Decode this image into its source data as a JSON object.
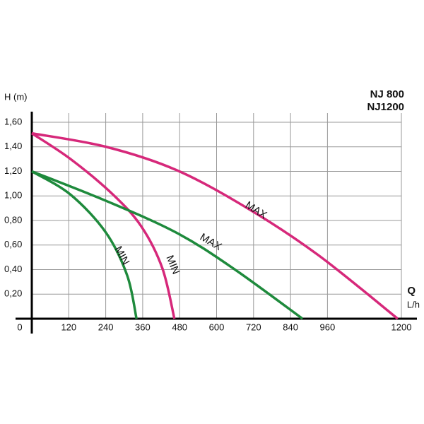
{
  "chart_data": {
    "type": "line",
    "y_label": "H (m)",
    "x_label": "Q",
    "x_unit": "L/h",
    "legend": [
      {
        "label": "NJ 800",
        "color": "#1e8a3c"
      },
      {
        "label": "NJ1200",
        "color": "#d6287a"
      }
    ],
    "xlim": [
      0,
      1200
    ],
    "ylim": [
      0,
      1.6
    ],
    "xticks": [
      0,
      120,
      240,
      360,
      480,
      600,
      720,
      840,
      960,
      1200
    ],
    "yticks": [
      {
        "value": 0.2,
        "label": "0,20"
      },
      {
        "value": 0.4,
        "label": "0,40"
      },
      {
        "value": 0.6,
        "label": "0,60"
      },
      {
        "value": 0.8,
        "label": "0,80"
      },
      {
        "value": 1.0,
        "label": "1,00"
      },
      {
        "value": 1.2,
        "label": "1,20"
      },
      {
        "value": 1.4,
        "label": "1,40"
      },
      {
        "value": 1.6,
        "label": "1,60"
      }
    ],
    "grid": true,
    "series": [
      {
        "name": "MAX",
        "color": "#d6287a",
        "x": [
          0,
          241,
          470,
          700,
          929,
          1188
        ],
        "values": [
          1.51,
          1.4,
          1.21,
          0.9,
          0.52,
          0
        ]
      },
      {
        "name": "MIN",
        "color": "#d6287a",
        "x": [
          0,
          126,
          264,
          356,
          424,
          463
        ],
        "values": [
          1.51,
          1.3,
          1.01,
          0.75,
          0.41,
          0
        ]
      },
      {
        "name": "MAX",
        "color": "#1e8a3c",
        "x": [
          0,
          241,
          470,
          654,
          879
        ],
        "values": [
          1.2,
          0.96,
          0.7,
          0.41,
          0
        ]
      },
      {
        "name": "MIN",
        "color": "#1e8a3c",
        "x": [
          0,
          126,
          241,
          310,
          340
        ],
        "values": [
          1.2,
          1.01,
          0.7,
          0.35,
          0
        ]
      }
    ]
  }
}
